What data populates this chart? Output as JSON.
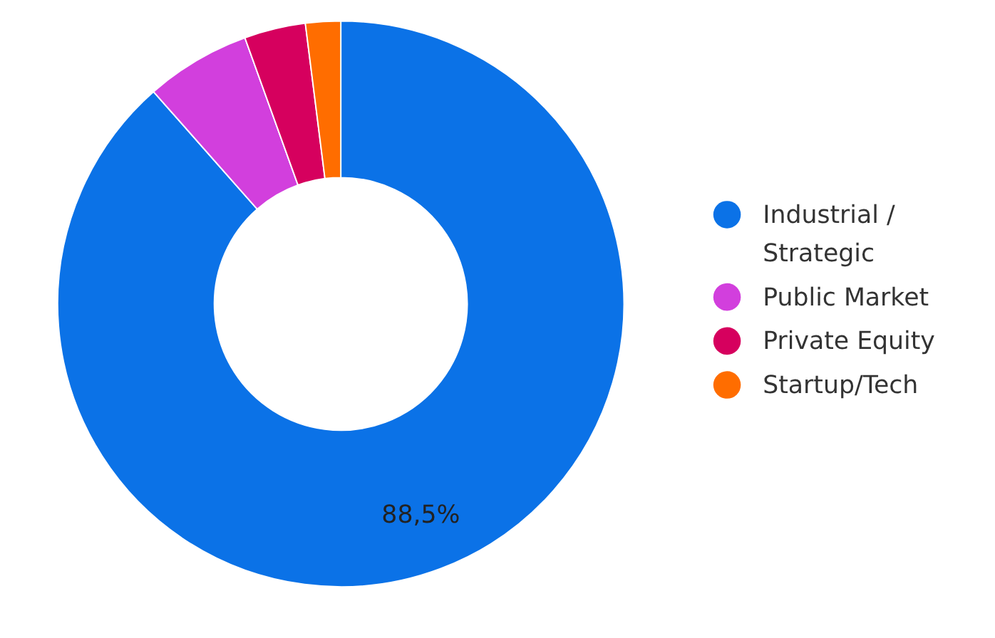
{
  "chart_data": {
    "type": "donut",
    "categories": [
      "Industrial / Strategic",
      "Public Market",
      "Private Equity",
      "Startup/Tech"
    ],
    "values": [
      88.5,
      6,
      3.5,
      2
    ],
    "colors": [
      "#0b72e7",
      "#d23fdd",
      "#d6005e",
      "#ff6d00"
    ],
    "value_labels": [
      "88,5%",
      null,
      null,
      null
    ],
    "legend": "right"
  }
}
